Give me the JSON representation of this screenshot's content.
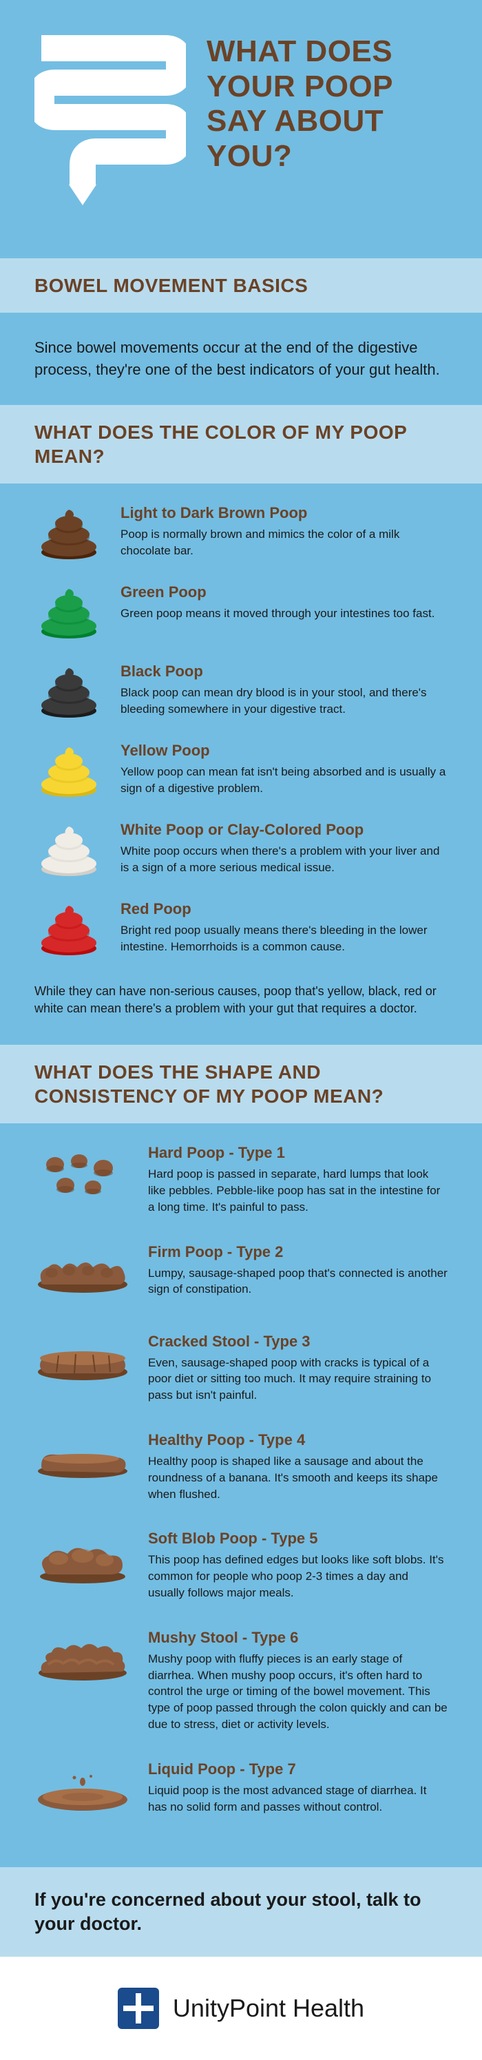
{
  "hero": {
    "title": "WHAT DOES YOUR POOP SAY ABOUT YOU?"
  },
  "section1": {
    "header": "BOWEL MOVEMENT BASICS",
    "intro": "Since bowel movements occur at the end of the digestive process, they're one of the best indicators of your gut health."
  },
  "section2": {
    "header": "WHAT DOES THE COLOR OF MY POOP MEAN?",
    "items": [
      {
        "color": "#6b4226",
        "title": "Light to Dark Brown Poop",
        "desc": "Poop is normally brown and mimics the color of a milk chocolate bar."
      },
      {
        "color": "#1a9e4a",
        "title": "Green Poop",
        "desc": "Green poop means it moved through your intestines too fast."
      },
      {
        "color": "#3a3a3a",
        "title": "Black Poop",
        "desc": "Black poop can mean dry blood is in your stool, and there's bleeding somewhere in your digestive tract."
      },
      {
        "color": "#f7d633",
        "title": "Yellow Poop",
        "desc": "Yellow poop can mean fat isn't being absorbed and is usually a sign of a digestive problem."
      },
      {
        "color": "#f0ede6",
        "title": "White Poop or Clay-Colored Poop",
        "desc": "White poop occurs when there's a problem with your liver and is a sign of a more serious medical issue."
      },
      {
        "color": "#d62828",
        "title": "Red Poop",
        "desc": "Bright red poop usually means there's bleeding in the lower intestine. Hemorrhoids is a common cause."
      }
    ],
    "warning": "While they can have non-serious causes, poop that's yellow, black, red or white can mean there's a problem with your gut that requires a doctor."
  },
  "section3": {
    "header": "WHAT DOES THE SHAPE AND CONSISTENCY OF MY POOP MEAN?",
    "items": [
      {
        "type": "pellets",
        "title": "Hard Poop - Type 1",
        "desc": "Hard poop is passed in separate, hard lumps that look like pebbles. Pebble-like poop has sat in the intestine for a long time. It's painful to pass."
      },
      {
        "type": "lumpy",
        "title": "Firm Poop - Type 2",
        "desc": "Lumpy, sausage-shaped poop that's connected is another sign of constipation."
      },
      {
        "type": "cracked",
        "title": "Cracked Stool - Type 3",
        "desc": "Even, sausage-shaped poop with cracks is typical of a poor diet or sitting too much. It may require straining to pass but isn't painful."
      },
      {
        "type": "smooth",
        "title": "Healthy Poop - Type 4",
        "desc": "Healthy poop is shaped like a sausage and about the roundness of a banana. It's smooth and keeps its shape when flushed."
      },
      {
        "type": "blobs",
        "title": "Soft Blob Poop - Type 5",
        "desc": "This poop has defined edges but looks like soft blobs. It's common for people who poop 2-3 times a day and usually follows major meals."
      },
      {
        "type": "mushy",
        "title": "Mushy Stool - Type 6",
        "desc": "Mushy poop with fluffy pieces is an early stage of diarrhea. When mushy poop occurs, it's often hard to control the urge or timing of the bowel movement. This type of poop passed through the colon quickly and can be due to stress, diet or activity levels."
      },
      {
        "type": "liquid",
        "title": "Liquid Poop - Type 7",
        "desc": "Liquid poop is the most advanced stage of diarrhea. It has no solid form and passes without control."
      }
    ]
  },
  "concern": "If you're concerned about your stool, talk to your doctor.",
  "footer": {
    "brand": "UnityPoint Health"
  },
  "shape_fills": {
    "light": "#a87048",
    "mid": "#8b5a3c",
    "dark": "#6b4226"
  }
}
